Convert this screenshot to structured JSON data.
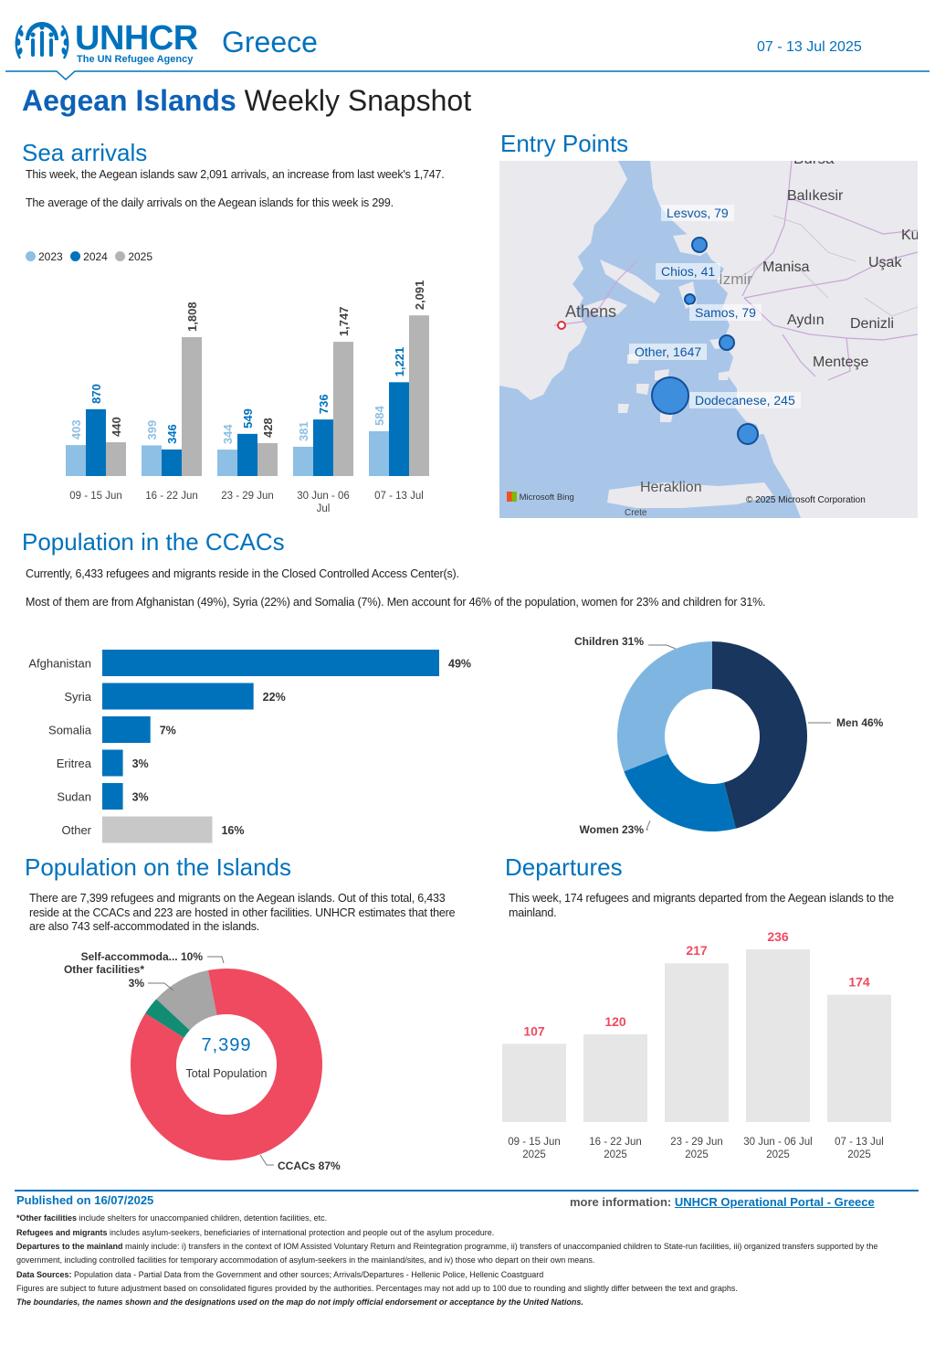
{
  "header": {
    "org_name": "UNHCR",
    "org_tagline": "The UN Refugee Agency",
    "country": "Greece",
    "date_range": "07 - 13 Jul 2025",
    "title_bold": "Aegean Islands",
    "title_rest": "Weekly Snapshot",
    "colors": {
      "brand": "#0072bc",
      "title": "#0d61b6"
    }
  },
  "sea_arrivals": {
    "heading": "Sea arrivals",
    "text1": "This week, the Aegean islands saw 2,091 arrivals, an increase from last week's 1,747.",
    "text2": "The average of the daily arrivals on the Aegean islands for this week is 299."
  },
  "entry_points": {
    "heading": "Entry Points",
    "map_places": [
      "Bursa",
      "Balıkesir",
      "Manisa",
      "Uşak",
      "Ku",
      "İzmir",
      "Aydın",
      "Denizli",
      "Menteşe",
      "Athens",
      "Heraklion",
      "Crete"
    ],
    "points": [
      {
        "label": "Lesvos, 79",
        "value": 79
      },
      {
        "label": "Chios, 41",
        "value": 41
      },
      {
        "label": "Samos, 79",
        "value": 79
      },
      {
        "label": "Other, 1647",
        "value": 1647
      },
      {
        "label": "Dodecanese, 245",
        "value": 245
      }
    ],
    "attribution_left": "Microsoft Bing",
    "attribution_right": "© 2025 Microsoft Corporation"
  },
  "ccac": {
    "heading": "Population in the CCACs",
    "text1": "Currently, 6,433 refugees and migrants reside in the Closed Controlled Access Center(s).",
    "text2": "Most of them are from Afghanistan (49%), Syria (22%) and Somalia (7%). Men account for 46% of the population, women for 23% and children for 31%."
  },
  "islands": {
    "heading": "Population on the Islands",
    "text": "There are 7,399 refugees and migrants on the Aegean islands. Out of this total, 6,433 reside at the CCACs and 223 are hosted in other facilities. UNHCR estimates that there are also 743 self-accommodated in the islands.",
    "center_value": "7,399",
    "center_label": "Total Population"
  },
  "departures": {
    "heading": "Departures",
    "text": "This week, 174 refugees and migrants departed from the Aegean islands to the mainland."
  },
  "chart_data": [
    {
      "id": "sea-arrivals",
      "type": "bar",
      "categories": [
        "09 - 15 Jun",
        "16 - 22 Jun",
        "23 - 29 Jun",
        "30 Jun - 06 Jul",
        "07 - 13 Jul"
      ],
      "series": [
        {
          "name": "2023",
          "values": [
            403,
            399,
            344,
            381,
            584
          ],
          "labels": [
            "403",
            "399",
            "344",
            "381",
            "584"
          ],
          "color": "#8ebfe4"
        },
        {
          "name": "2024",
          "values": [
            870,
            346,
            549,
            736,
            1221
          ],
          "labels": [
            "870",
            "346",
            "549",
            "736",
            "1,221"
          ],
          "color": "#0072bc"
        },
        {
          "name": "2025",
          "values": [
            440,
            1808,
            428,
            1747,
            2091
          ],
          "labels": [
            "440",
            "1,808",
            "428",
            "1,747",
            "2,091"
          ],
          "color": "#b4b4b4"
        }
      ],
      "ylim": [
        0,
        2200
      ],
      "legend_position": "top-left"
    },
    {
      "id": "ccac-origin",
      "type": "bar",
      "orientation": "horizontal",
      "categories": [
        "Afghanistan",
        "Syria",
        "Somalia",
        "Eritrea",
        "Sudan",
        "Other"
      ],
      "values": [
        49,
        22,
        7,
        3,
        3,
        16
      ],
      "labels": [
        "49%",
        "22%",
        "7%",
        "3%",
        "3%",
        "16%"
      ],
      "colors": [
        "#0072bc",
        "#0072bc",
        "#0072bc",
        "#0072bc",
        "#0072bc",
        "#c8c8c8"
      ]
    },
    {
      "id": "ccac-demographics",
      "type": "pie",
      "style": "donut",
      "slices": [
        {
          "label": "Men 46%",
          "value": 46,
          "color": "#18365e"
        },
        {
          "label": "Women 23%",
          "value": 23,
          "color": "#0072bc"
        },
        {
          "label": "Children 31%",
          "value": 31,
          "color": "#7eb6e1"
        }
      ]
    },
    {
      "id": "islands-population",
      "type": "pie",
      "style": "donut",
      "slices": [
        {
          "label": "CCACs 87%",
          "value": 87,
          "color": "#ef4a60"
        },
        {
          "label": "Other facilities* 3%",
          "value": 3,
          "color": "#128d74"
        },
        {
          "label": "Self-accommoda... 10%",
          "value": 10,
          "color": "#a6a6a6"
        }
      ]
    },
    {
      "id": "departures",
      "type": "bar",
      "categories": [
        "09 - 15 Jun 2025",
        "16 - 22 Jun 2025",
        "23 - 29 Jun 2025",
        "30 Jun - 06 Jul 2025",
        "07 - 13 Jul 2025"
      ],
      "values": [
        107,
        120,
        217,
        236,
        174
      ],
      "ylim": [
        0,
        250
      ],
      "bar_color": "#e6e6e6",
      "label_color": "#ef4a60"
    }
  ],
  "footer": {
    "published": "Published on 16/07/2025",
    "more_info_label": "more information:",
    "more_info_link": "UNHCR Operational Portal - Greece",
    "note1_bold": "*Other facilities",
    "note1": " include shelters for unaccompanied children, detention facilities, etc.",
    "note2_bold": "Refugees and migrants",
    "note2": " includes asylum-seekers, beneficiaries of international protection and people out of the asylum procedure.",
    "note3_bold": "Departures to the mainland",
    "note3": " mainly include: i) transfers in the context of IOM Assisted Voluntary Return and Reintegration programme, ii) transfers of unaccompanied children to State-run facilities, iii) organized transfers supported by the government, including controlled facilities for temporary accommodation of asylum-seekers in the mainland/sites, and iv) those who depart on their own means.",
    "note4_bold": "Data Sources:",
    "note4": " Population data - Partial Data from the Government and other sources; Arrivals/Departures - Hellenic Police, Hellenic Coastguard",
    "note5": "Figures are subject to future adjustment based on consolidated figures provided by the authorities. Percentages may not add up to 100 due to rounding and slightly differ between the text and graphs.",
    "note6": "The boundaries, the names shown and the designations used on the map do not imply official endorsement or acceptance by the United Nations."
  }
}
